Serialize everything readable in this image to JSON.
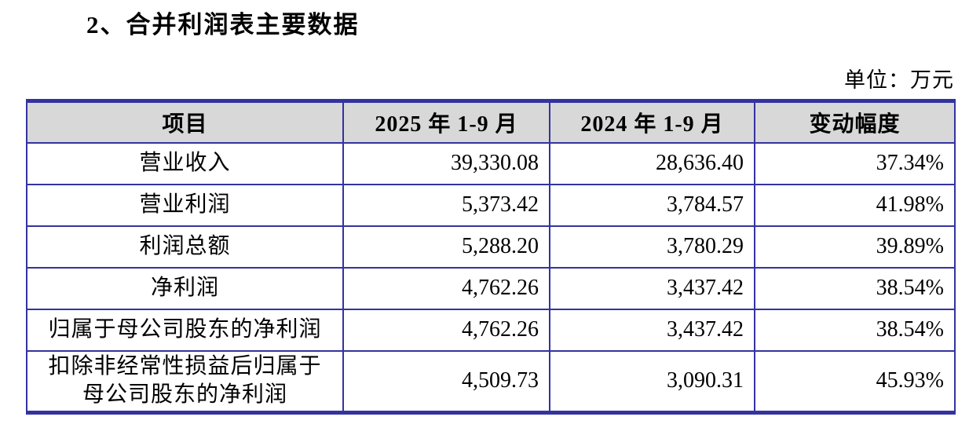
{
  "page": {
    "section_title": "2、合并利润表主要数据",
    "unit_label": "单位：万元"
  },
  "table": {
    "columns": [
      "项目",
      "2025 年 1-9 月",
      "2024 年 1-9 月",
      "变动幅度"
    ],
    "rows": [
      {
        "item": "营业收入",
        "p2025": "39,330.08",
        "p2024": "28,636.40",
        "change": "37.34%"
      },
      {
        "item": "营业利润",
        "p2025": "5,373.42",
        "p2024": "3,784.57",
        "change": "41.98%"
      },
      {
        "item": "利润总额",
        "p2025": "5,288.20",
        "p2024": "3,780.29",
        "change": "39.89%"
      },
      {
        "item": "净利润",
        "p2025": "4,762.26",
        "p2024": "3,437.42",
        "change": "38.54%"
      },
      {
        "item": "归属于母公司股东的净利润",
        "p2025": "4,762.26",
        "p2024": "3,437.42",
        "change": "38.54%"
      },
      {
        "item": "扣除非经常性损益后归属于\n母公司股东的净利润",
        "p2025": "4,509.73",
        "p2024": "3,090.31",
        "change": "45.93%"
      }
    ]
  },
  "colors": {
    "table_border": "#3333A0",
    "header_bg": "#D8D8D8"
  }
}
